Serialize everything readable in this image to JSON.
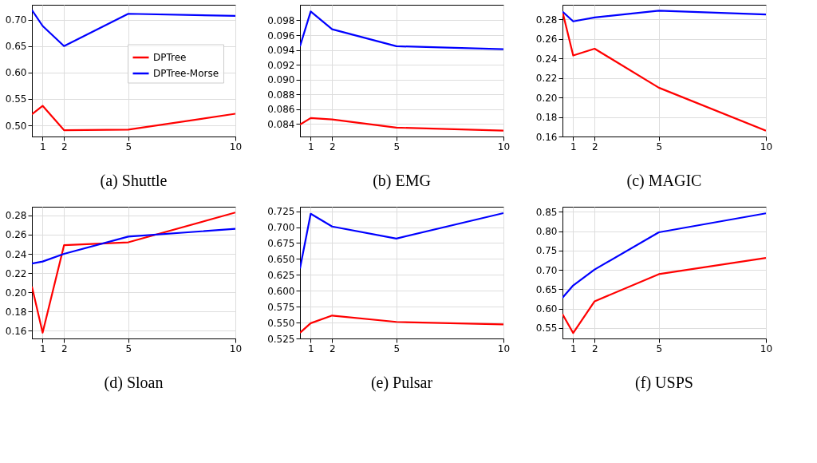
{
  "chart_data": [
    {
      "type": "line",
      "title": "(a) Shuttle",
      "x": [
        0.5,
        1,
        2,
        5,
        10
      ],
      "xlim": [
        0.5,
        10
      ],
      "xticks": [
        1,
        2,
        5,
        10
      ],
      "ylim": [
        0.479,
        0.728
      ],
      "yticks": [
        {
          "value": 0.5,
          "label": "0.50"
        },
        0.55,
        {
          "value": 0.6,
          "label": "0.60"
        },
        0.65,
        {
          "value": 0.7,
          "label": "0.70"
        }
      ],
      "grid": true,
      "legend": "right",
      "line_style": "solid",
      "marker": "none",
      "series": [
        {
          "name": "DPTree",
          "color": "#ff0000",
          "values": [
            0.521,
            0.537,
            0.491,
            0.492,
            0.522
          ]
        },
        {
          "name": "DPTree-Morse",
          "color": "#0000ff",
          "values": [
            0.718,
            0.688,
            0.65,
            0.711,
            0.707
          ]
        }
      ]
    },
    {
      "type": "line",
      "title": "(b) EMG",
      "x": [
        0.5,
        1,
        2,
        5,
        10
      ],
      "xlim": [
        0.5,
        10
      ],
      "xticks": [
        1,
        2,
        5,
        10
      ],
      "ylim": [
        0.0823,
        0.1001
      ],
      "yticks": [
        0.084,
        0.086,
        0.088,
        {
          "value": 0.09,
          "label": "0.090"
        },
        0.092,
        0.094,
        0.096,
        0.098
      ],
      "grid": true,
      "line_style": "solid",
      "marker": "none",
      "series": [
        {
          "color": "#ff0000",
          "values": [
            0.0839,
            0.0848,
            0.0846,
            0.0835,
            0.0831
          ]
        },
        {
          "color": "#0000ff",
          "values": [
            0.0945,
            0.0992,
            0.0968,
            0.0945,
            0.0941
          ]
        }
      ]
    },
    {
      "type": "line",
      "title": "(c) MAGIC",
      "x": [
        0.5,
        1,
        2,
        5,
        10
      ],
      "xlim": [
        0.5,
        10
      ],
      "xticks": [
        1,
        2,
        5,
        10
      ],
      "ylim": [
        0.16,
        0.295
      ],
      "yticks": [
        0.16,
        0.18,
        {
          "value": 0.2,
          "label": "0.20"
        },
        0.22,
        0.24,
        0.26,
        0.28
      ],
      "grid": true,
      "line_style": "solid",
      "marker": "none",
      "series": [
        {
          "color": "#ff0000",
          "values": [
            0.288,
            0.243,
            0.25,
            0.21,
            0.166
          ]
        },
        {
          "color": "#0000ff",
          "values": [
            0.288,
            0.278,
            0.282,
            0.289,
            0.285
          ]
        }
      ]
    },
    {
      "type": "line",
      "title": "(d) Sloan",
      "x": [
        0.5,
        1,
        2,
        5,
        10
      ],
      "xlim": [
        0.5,
        10
      ],
      "xticks": [
        1,
        2,
        5,
        10
      ],
      "ylim": [
        0.152,
        0.289
      ],
      "yticks": [
        0.16,
        0.18,
        {
          "value": 0.2,
          "label": "0.20"
        },
        0.22,
        0.24,
        0.26,
        0.28
      ],
      "grid": true,
      "line_style": "solid",
      "marker": "none",
      "series": [
        {
          "color": "#ff0000",
          "values": [
            0.206,
            0.158,
            0.249,
            0.252,
            0.283
          ]
        },
        {
          "color": "#0000ff",
          "values": [
            0.23,
            0.232,
            0.24,
            0.258,
            0.266
          ]
        }
      ]
    },
    {
      "type": "line",
      "title": "(e) Pulsar",
      "x": [
        0.5,
        1,
        2,
        5,
        10
      ],
      "xlim": [
        0.5,
        10
      ],
      "xticks": [
        1,
        2,
        5,
        10
      ],
      "ylim": [
        0.525,
        0.732
      ],
      "yticks": [
        0.525,
        {
          "value": 0.55,
          "label": "0.550"
        },
        0.575,
        {
          "value": 0.6,
          "label": "0.600"
        },
        0.625,
        {
          "value": 0.65,
          "label": "0.650"
        },
        0.675,
        {
          "value": 0.7,
          "label": "0.700"
        },
        0.725
      ],
      "grid": true,
      "line_style": "solid",
      "marker": "none",
      "series": [
        {
          "color": "#ff0000",
          "values": [
            0.534,
            0.549,
            0.561,
            0.551,
            0.547
          ]
        },
        {
          "color": "#0000ff",
          "values": [
            0.635,
            0.721,
            0.701,
            0.682,
            0.722
          ]
        }
      ]
    },
    {
      "type": "line",
      "title": "(f) USPS",
      "x": [
        0.5,
        1,
        2,
        5,
        10
      ],
      "xlim": [
        0.5,
        10
      ],
      "xticks": [
        1,
        2,
        5,
        10
      ],
      "ylim": [
        0.523,
        0.863
      ],
      "yticks": [
        0.55,
        {
          "value": 0.6,
          "label": "0.60"
        },
        0.65,
        {
          "value": 0.7,
          "label": "0.70"
        },
        0.75,
        {
          "value": 0.8,
          "label": "0.80"
        },
        0.85
      ],
      "grid": true,
      "line_style": "solid",
      "marker": "none",
      "series": [
        {
          "color": "#ff0000",
          "values": [
            0.586,
            0.537,
            0.619,
            0.689,
            0.731
          ]
        },
        {
          "color": "#0000ff",
          "values": [
            0.628,
            0.66,
            0.701,
            0.797,
            0.846
          ]
        }
      ]
    }
  ]
}
